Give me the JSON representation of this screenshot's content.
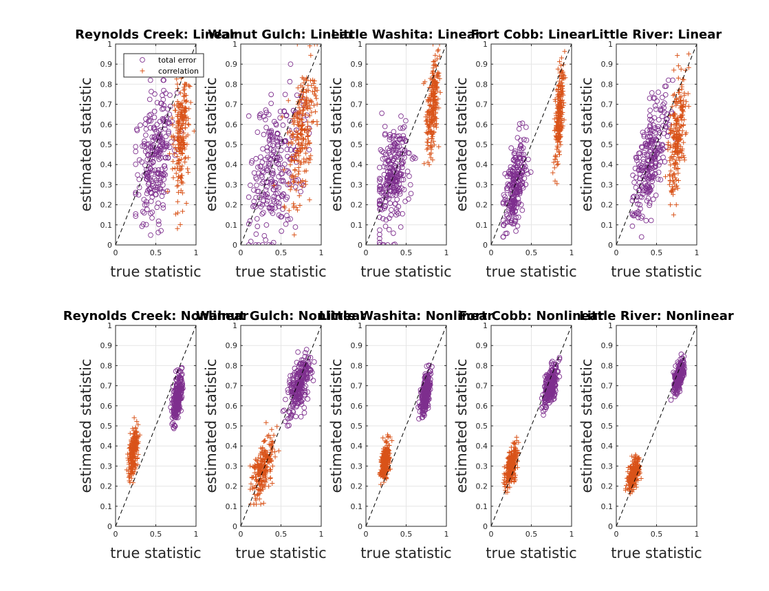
{
  "figure": {
    "background": "#ffffff",
    "axis_color": "#262626",
    "grid_color": "#e6e6e6"
  },
  "series_style": {
    "total error": {
      "marker": "circle",
      "color": "#7e2f8e"
    },
    "correlation": {
      "marker": "plus",
      "color": "#d95319"
    }
  },
  "chart_data": [
    {
      "type": "scatter",
      "title": "Reynolds Creek: Linear",
      "xlabel": "true statistic",
      "ylabel": "estimated statistic",
      "xlim": [
        0,
        1
      ],
      "ylim": [
        0,
        1
      ],
      "xticks": [
        0,
        0.5,
        1
      ],
      "yticks": [
        0,
        0.1,
        0.2,
        0.3,
        0.4,
        0.5,
        0.6,
        0.7,
        0.8,
        0.9,
        1
      ],
      "grid": true,
      "legend": {
        "position": "top-left",
        "entries": [
          "total error",
          "correlation"
        ]
      },
      "reference_line": "y = x (dashed)",
      "series": [
        {
          "name": "total error",
          "cloud": {
            "n": 240,
            "cx": 0.5,
            "cy": 0.45,
            "sx": 0.12,
            "sy": 0.17,
            "corr": 0.35,
            "xmin": 0.25,
            "xmax": 0.82,
            "ymin": 0.0,
            "ymax": 0.82
          }
        },
        {
          "name": "correlation",
          "cloud": {
            "n": 230,
            "cx": 0.82,
            "cy": 0.57,
            "sx": 0.05,
            "sy": 0.17,
            "corr": 0.3,
            "xmin": 0.55,
            "xmax": 0.98,
            "ymin": 0.07,
            "ymax": 1.0
          }
        }
      ]
    },
    {
      "type": "scatter",
      "title": "Walnut Gulch: Linear",
      "xlabel": "true statistic",
      "ylabel": "estimated statistic",
      "xlim": [
        0,
        1
      ],
      "ylim": [
        0,
        1
      ],
      "xticks": [
        0,
        0.5,
        1
      ],
      "yticks": [
        0,
        0.1,
        0.2,
        0.3,
        0.4,
        0.5,
        0.6,
        0.7,
        0.8,
        0.9,
        1
      ],
      "grid": true,
      "series": [
        {
          "name": "total error",
          "cloud": {
            "n": 250,
            "cx": 0.42,
            "cy": 0.38,
            "sx": 0.17,
            "sy": 0.2,
            "corr": 0.5,
            "xmin": 0.1,
            "xmax": 0.85,
            "ymin": 0.0,
            "ymax": 0.9
          }
        },
        {
          "name": "correlation",
          "cloud": {
            "n": 230,
            "cx": 0.76,
            "cy": 0.58,
            "sx": 0.09,
            "sy": 0.18,
            "corr": 0.55,
            "xmin": 0.4,
            "xmax": 0.95,
            "ymin": 0.05,
            "ymax": 1.0
          }
        }
      ]
    },
    {
      "type": "scatter",
      "title": "Little Washita: Linear",
      "xlabel": "true statistic",
      "ylabel": "estimated statistic",
      "xlim": [
        0,
        1
      ],
      "ylim": [
        0,
        1
      ],
      "xticks": [
        0,
        0.5,
        1
      ],
      "yticks": [
        0,
        0.1,
        0.2,
        0.3,
        0.4,
        0.5,
        0.6,
        0.7,
        0.8,
        0.9,
        1
      ],
      "grid": true,
      "series": [
        {
          "name": "total error",
          "cloud": {
            "n": 250,
            "cx": 0.33,
            "cy": 0.33,
            "sx": 0.1,
            "sy": 0.13,
            "corr": 0.3,
            "xmin": 0.17,
            "xmax": 0.8,
            "ymin": 0.0,
            "ymax": 0.7
          }
        },
        {
          "name": "correlation",
          "cloud": {
            "n": 230,
            "cx": 0.83,
            "cy": 0.7,
            "sx": 0.04,
            "sy": 0.12,
            "corr": 0.5,
            "xmin": 0.7,
            "xmax": 0.95,
            "ymin": 0.4,
            "ymax": 1.0
          }
        }
      ]
    },
    {
      "type": "scatter",
      "title": "Fort Cobb: Linear",
      "xlabel": "true statistic",
      "ylabel": "estimated statistic",
      "xlim": [
        0,
        1
      ],
      "ylim": [
        0,
        1
      ],
      "xticks": [
        0,
        0.5,
        1
      ],
      "yticks": [
        0,
        0.1,
        0.2,
        0.3,
        0.4,
        0.5,
        0.6,
        0.7,
        0.8,
        0.9,
        1
      ],
      "grid": true,
      "series": [
        {
          "name": "total error",
          "cloud": {
            "n": 240,
            "cx": 0.3,
            "cy": 0.3,
            "sx": 0.07,
            "sy": 0.11,
            "corr": 0.5,
            "xmin": 0.15,
            "xmax": 0.6,
            "ymin": 0.04,
            "ymax": 0.8
          }
        },
        {
          "name": "correlation",
          "cloud": {
            "n": 220,
            "cx": 0.85,
            "cy": 0.66,
            "sx": 0.03,
            "sy": 0.12,
            "corr": 0.6,
            "xmin": 0.67,
            "xmax": 0.93,
            "ymin": 0.2,
            "ymax": 0.97
          }
        }
      ]
    },
    {
      "type": "scatter",
      "title": "Little River: Linear",
      "xlabel": "true statistic",
      "ylabel": "estimated statistic",
      "xlim": [
        0,
        1
      ],
      "ylim": [
        0,
        1
      ],
      "xticks": [
        0,
        0.5,
        1
      ],
      "yticks": [
        0,
        0.1,
        0.2,
        0.3,
        0.4,
        0.5,
        0.6,
        0.7,
        0.8,
        0.9,
        1
      ],
      "grid": true,
      "series": [
        {
          "name": "total error",
          "cloud": {
            "n": 250,
            "cx": 0.42,
            "cy": 0.43,
            "sx": 0.11,
            "sy": 0.15,
            "corr": 0.6,
            "xmin": 0.2,
            "xmax": 0.87,
            "ymin": 0.04,
            "ymax": 0.82
          }
        },
        {
          "name": "correlation",
          "cloud": {
            "n": 230,
            "cx": 0.76,
            "cy": 0.55,
            "sx": 0.06,
            "sy": 0.15,
            "corr": 0.55,
            "xmin": 0.5,
            "xmax": 0.9,
            "ymin": 0.15,
            "ymax": 0.96
          }
        }
      ]
    },
    {
      "type": "scatter",
      "title": "Reynolds Creek: Nonlinear",
      "xlabel": "true statistic",
      "ylabel": "estimated statistic",
      "xlim": [
        0,
        1
      ],
      "ylim": [
        0,
        1
      ],
      "xticks": [
        0,
        0.5,
        1
      ],
      "yticks": [
        0,
        0.1,
        0.2,
        0.3,
        0.4,
        0.5,
        0.6,
        0.7,
        0.8,
        0.9,
        1
      ],
      "grid": true,
      "series": [
        {
          "name": "total error",
          "cloud": {
            "n": 230,
            "cx": 0.77,
            "cy": 0.64,
            "sx": 0.03,
            "sy": 0.06,
            "corr": 0.5,
            "xmin": 0.65,
            "xmax": 0.85,
            "ymin": 0.42,
            "ymax": 0.82
          }
        },
        {
          "name": "correlation",
          "cloud": {
            "n": 230,
            "cx": 0.22,
            "cy": 0.37,
            "sx": 0.03,
            "sy": 0.06,
            "corr": 0.4,
            "xmin": 0.12,
            "xmax": 0.32,
            "ymin": 0.2,
            "ymax": 0.58
          }
        }
      ]
    },
    {
      "type": "scatter",
      "title": "Walnut Gulch: Nonlinear",
      "xlabel": "true statistic",
      "ylabel": "estimated statistic",
      "xlim": [
        0,
        1
      ],
      "ylim": [
        0,
        1
      ],
      "xticks": [
        0,
        0.5,
        1
      ],
      "yticks": [
        0,
        0.1,
        0.2,
        0.3,
        0.4,
        0.5,
        0.6,
        0.7,
        0.8,
        0.9,
        1
      ],
      "grid": true,
      "series": [
        {
          "name": "total error",
          "cloud": {
            "n": 240,
            "cx": 0.73,
            "cy": 0.7,
            "sx": 0.07,
            "sy": 0.07,
            "corr": 0.6,
            "xmin": 0.52,
            "xmax": 0.92,
            "ymin": 0.5,
            "ymax": 0.88
          }
        },
        {
          "name": "correlation",
          "cloud": {
            "n": 230,
            "cx": 0.27,
            "cy": 0.28,
            "sx": 0.07,
            "sy": 0.08,
            "corr": 0.6,
            "xmin": 0.1,
            "xmax": 0.5,
            "ymin": 0.11,
            "ymax": 0.55
          }
        }
      ]
    },
    {
      "type": "scatter",
      "title": "Little Washita: Nonlinear",
      "xlabel": "true statistic",
      "ylabel": "estimated statistic",
      "xlim": [
        0,
        1
      ],
      "ylim": [
        0,
        1
      ],
      "xticks": [
        0,
        0.5,
        1
      ],
      "yticks": [
        0,
        0.1,
        0.2,
        0.3,
        0.4,
        0.5,
        0.6,
        0.7,
        0.8,
        0.9,
        1
      ],
      "grid": true,
      "series": [
        {
          "name": "total error",
          "cloud": {
            "n": 230,
            "cx": 0.74,
            "cy": 0.66,
            "sx": 0.03,
            "sy": 0.05,
            "corr": 0.5,
            "xmin": 0.65,
            "xmax": 0.82,
            "ymin": 0.52,
            "ymax": 0.82
          }
        },
        {
          "name": "correlation",
          "cloud": {
            "n": 230,
            "cx": 0.24,
            "cy": 0.32,
            "sx": 0.03,
            "sy": 0.05,
            "corr": 0.5,
            "xmin": 0.15,
            "xmax": 0.35,
            "ymin": 0.19,
            "ymax": 0.46
          }
        }
      ]
    },
    {
      "type": "scatter",
      "title": "Fort Cobb: Nonlinear",
      "xlabel": "true statistic",
      "ylabel": "estimated statistic",
      "xlim": [
        0,
        1
      ],
      "ylim": [
        0,
        1
      ],
      "xticks": [
        0,
        0.5,
        1
      ],
      "yticks": [
        0,
        0.1,
        0.2,
        0.3,
        0.4,
        0.5,
        0.6,
        0.7,
        0.8,
        0.9,
        1
      ],
      "grid": true,
      "series": [
        {
          "name": "total error",
          "cloud": {
            "n": 230,
            "cx": 0.74,
            "cy": 0.7,
            "sx": 0.04,
            "sy": 0.05,
            "corr": 0.6,
            "xmin": 0.63,
            "xmax": 0.85,
            "ymin": 0.55,
            "ymax": 0.84
          }
        },
        {
          "name": "correlation",
          "cloud": {
            "n": 230,
            "cx": 0.25,
            "cy": 0.3,
            "sx": 0.04,
            "sy": 0.05,
            "corr": 0.6,
            "xmin": 0.14,
            "xmax": 0.38,
            "ymin": 0.17,
            "ymax": 0.48
          }
        }
      ]
    },
    {
      "type": "scatter",
      "title": "Little River: Nonlinear",
      "xlabel": "true statistic",
      "ylabel": "estimated statistic",
      "xlim": [
        0,
        1
      ],
      "ylim": [
        0,
        1
      ],
      "xticks": [
        0,
        0.5,
        1
      ],
      "yticks": [
        0,
        0.1,
        0.2,
        0.3,
        0.4,
        0.5,
        0.6,
        0.7,
        0.8,
        0.9,
        1
      ],
      "grid": true,
      "series": [
        {
          "name": "total error",
          "cloud": {
            "n": 230,
            "cx": 0.78,
            "cy": 0.75,
            "sx": 0.03,
            "sy": 0.04,
            "corr": 0.6,
            "xmin": 0.68,
            "xmax": 0.88,
            "ymin": 0.6,
            "ymax": 0.86
          }
        },
        {
          "name": "correlation",
          "cloud": {
            "n": 230,
            "cx": 0.22,
            "cy": 0.26,
            "sx": 0.04,
            "sy": 0.04,
            "corr": 0.6,
            "xmin": 0.1,
            "xmax": 0.34,
            "ymin": 0.13,
            "ymax": 0.39
          }
        }
      ]
    }
  ]
}
